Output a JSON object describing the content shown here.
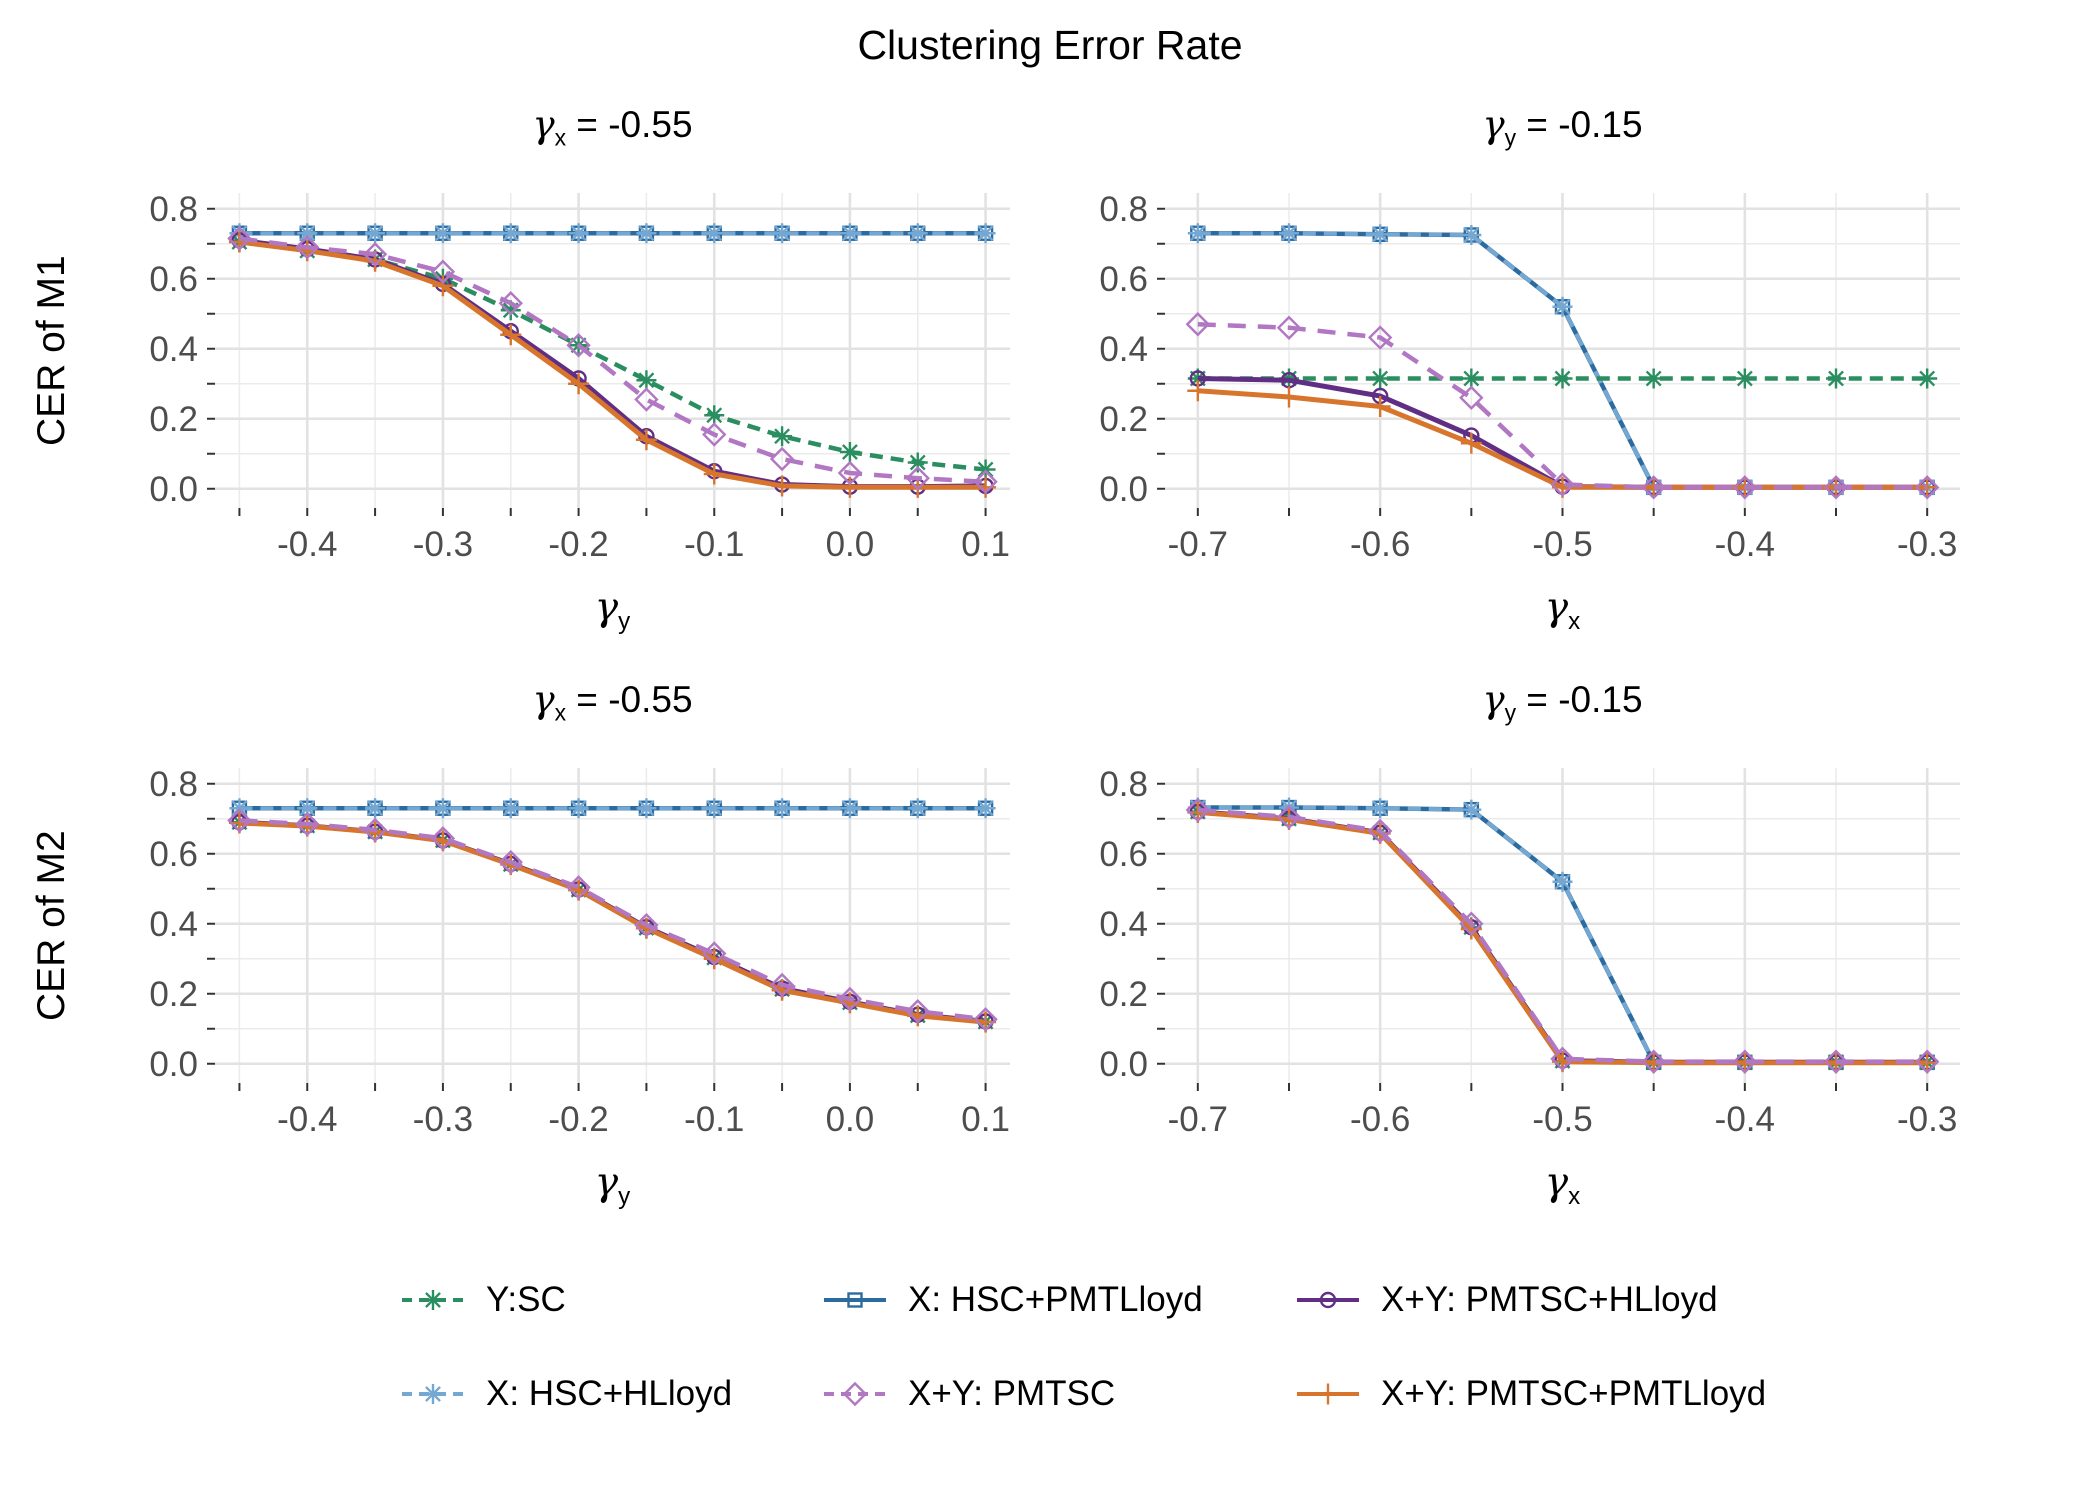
{
  "title": "Clustering Error Rate",
  "colors": {
    "green": "#2b8e60",
    "light_blue": "#74a8d3",
    "dark_blue": "#2c6ba0",
    "orchid": "#b277c3",
    "dark_purple": "#602e84",
    "orange": "#d7752d",
    "grid_major": "#e2e2e2",
    "grid_minor": "#ebebeb",
    "tick": "#333333",
    "tick_label": "#4d4d4d"
  },
  "series_styles": {
    "Y:SC": {
      "color": "#2b8e60",
      "dash": "13 8",
      "marker": "asterisk",
      "width": 4.5
    },
    "X: HSC+HLloyd": {
      "color": "#74a8d3",
      "dash": "13 8",
      "marker": "asterisk",
      "width": 4
    },
    "X: HSC+PMTLloyd": {
      "color": "#2c6ba0",
      "dash": "",
      "marker": "square",
      "width": 4.5
    },
    "X+Y: PMTSC": {
      "color": "#b277c3",
      "dash": "18 12",
      "marker": "diamond",
      "width": 4.5
    },
    "X+Y: PMTSC+HLloyd": {
      "color": "#602e84",
      "dash": "",
      "marker": "circle",
      "width": 5
    },
    "X+Y: PMTSC+PMTLloyd": {
      "color": "#d7752d",
      "dash": "",
      "marker": "plus",
      "width": 5
    }
  },
  "draw_order": [
    "X: HSC+PMTLloyd",
    "X: HSC+HLloyd",
    "Y:SC",
    "X+Y: PMTSC+HLloyd",
    "X+Y: PMTSC+PMTLloyd",
    "X+Y: PMTSC"
  ],
  "legend": {
    "rows": [
      [
        "Y:SC",
        "X: HSC+PMTLloyd",
        "X+Y: PMTSC+HLloyd"
      ],
      [
        "X: HSC+HLloyd",
        "X+Y: PMTSC",
        "X+Y: PMTSC+PMTLloyd"
      ]
    ]
  },
  "chart_data": [
    {
      "id": "m1-left",
      "type": "line",
      "facet": {
        "pre": "γ",
        "sub": "x",
        "post": " = -0.55"
      },
      "ylab": "CER of M1",
      "xlab": {
        "pre": "γ",
        "sub": "y"
      },
      "xlim": [
        -0.468,
        0.118
      ],
      "ylim": [
        -0.055,
        0.845
      ],
      "x": [
        -0.45,
        -0.4,
        -0.35,
        -0.3,
        -0.25,
        -0.2,
        -0.15,
        -0.1,
        -0.05,
        0.0,
        0.05,
        0.1
      ],
      "x_ticks": {
        "values": [
          -0.4,
          -0.3,
          -0.2,
          -0.1,
          0.0,
          0.1
        ],
        "labels": [
          "-0.4",
          "-0.3",
          "-0.2",
          "-0.1",
          "0.0",
          "0.1"
        ]
      },
      "x_minor": [
        -0.45,
        -0.35,
        -0.25,
        -0.15,
        -0.05,
        0.05
      ],
      "y_ticks": {
        "values": [
          0.0,
          0.2,
          0.4,
          0.6,
          0.8
        ],
        "labels": [
          "0.0",
          "0.2",
          "0.4",
          "0.6",
          "0.8"
        ]
      },
      "y_minor": [
        0.1,
        0.3,
        0.5,
        0.7
      ],
      "series": [
        {
          "name": "Y:SC",
          "values": [
            0.705,
            0.68,
            0.655,
            0.6,
            0.51,
            0.41,
            0.31,
            0.21,
            0.15,
            0.105,
            0.075,
            0.055
          ]
        },
        {
          "name": "X: HSC+HLloyd",
          "values": [
            0.73,
            0.73,
            0.73,
            0.73,
            0.73,
            0.73,
            0.73,
            0.73,
            0.73,
            0.73,
            0.73,
            0.73
          ]
        },
        {
          "name": "X: HSC+PMTLloyd",
          "values": [
            0.73,
            0.73,
            0.73,
            0.73,
            0.73,
            0.73,
            0.73,
            0.73,
            0.73,
            0.73,
            0.73,
            0.73
          ]
        },
        {
          "name": "X+Y: PMTSC",
          "values": [
            0.715,
            0.69,
            0.67,
            0.62,
            0.53,
            0.41,
            0.255,
            0.155,
            0.085,
            0.045,
            0.03,
            0.02
          ]
        },
        {
          "name": "X+Y: PMTSC+HLloyd",
          "values": [
            0.71,
            0.685,
            0.655,
            0.585,
            0.45,
            0.315,
            0.15,
            0.05,
            0.012,
            0.006,
            0.006,
            0.008
          ]
        },
        {
          "name": "X+Y: PMTSC+PMTLloyd",
          "values": [
            0.705,
            0.68,
            0.65,
            0.58,
            0.44,
            0.3,
            0.14,
            0.042,
            0.008,
            0.004,
            0.004,
            0.004
          ]
        }
      ]
    },
    {
      "id": "m1-right",
      "type": "line",
      "facet": {
        "pre": "γ",
        "sub": "y",
        "post": " = -0.15"
      },
      "ylab": "CER of M1",
      "xlab": {
        "pre": "γ",
        "sub": "x"
      },
      "xlim": [
        -0.718,
        -0.282
      ],
      "ylim": [
        -0.055,
        0.845
      ],
      "x": [
        -0.7,
        -0.65,
        -0.6,
        -0.55,
        -0.5,
        -0.45,
        -0.4,
        -0.35,
        -0.3
      ],
      "x_ticks": {
        "values": [
          -0.7,
          -0.6,
          -0.5,
          -0.4,
          -0.3
        ],
        "labels": [
          "-0.7",
          "-0.6",
          "-0.5",
          "-0.4",
          "-0.3"
        ]
      },
      "x_minor": [
        -0.65,
        -0.55,
        -0.45,
        -0.35
      ],
      "y_ticks": {
        "values": [
          0.0,
          0.2,
          0.4,
          0.6,
          0.8
        ],
        "labels": [
          "0.0",
          "0.2",
          "0.4",
          "0.6",
          "0.8"
        ]
      },
      "y_minor": [
        0.1,
        0.3,
        0.5,
        0.7
      ],
      "series": [
        {
          "name": "Y:SC",
          "values": [
            0.315,
            0.315,
            0.315,
            0.315,
            0.315,
            0.315,
            0.315,
            0.315,
            0.315
          ]
        },
        {
          "name": "X: HSC+HLloyd",
          "values": [
            0.73,
            0.73,
            0.727,
            0.725,
            0.52,
            0.004,
            0.004,
            0.004,
            0.004
          ]
        },
        {
          "name": "X: HSC+PMTLloyd",
          "values": [
            0.73,
            0.73,
            0.727,
            0.725,
            0.52,
            0.004,
            0.004,
            0.004,
            0.004
          ]
        },
        {
          "name": "X+Y: PMTSC",
          "values": [
            0.47,
            0.46,
            0.432,
            0.26,
            0.012,
            0.004,
            0.004,
            0.004,
            0.004
          ]
        },
        {
          "name": "X+Y: PMTSC+HLloyd",
          "values": [
            0.315,
            0.31,
            0.265,
            0.152,
            0.006,
            0.004,
            0.004,
            0.004,
            0.004
          ]
        },
        {
          "name": "X+Y: PMTSC+PMTLloyd",
          "values": [
            0.28,
            0.262,
            0.235,
            0.13,
            0.004,
            0.004,
            0.004,
            0.004,
            0.004
          ]
        }
      ]
    },
    {
      "id": "m2-left",
      "type": "line",
      "facet": {
        "pre": "γ",
        "sub": "x",
        "post": " = -0.55"
      },
      "ylab": "CER of M2",
      "xlab": {
        "pre": "γ",
        "sub": "y"
      },
      "xlim": [
        -0.468,
        0.118
      ],
      "ylim": [
        -0.055,
        0.845
      ],
      "x": [
        -0.45,
        -0.4,
        -0.35,
        -0.3,
        -0.25,
        -0.2,
        -0.15,
        -0.1,
        -0.05,
        0.0,
        0.05,
        0.1
      ],
      "x_ticks": {
        "values": [
          -0.4,
          -0.3,
          -0.2,
          -0.1,
          0.0,
          0.1
        ],
        "labels": [
          "-0.4",
          "-0.3",
          "-0.2",
          "-0.1",
          "0.0",
          "0.1"
        ]
      },
      "x_minor": [
        -0.45,
        -0.35,
        -0.25,
        -0.15,
        -0.05,
        0.05
      ],
      "y_ticks": {
        "values": [
          0.0,
          0.2,
          0.4,
          0.6,
          0.8
        ],
        "labels": [
          "0.0",
          "0.2",
          "0.4",
          "0.6",
          "0.8"
        ]
      },
      "y_minor": [
        0.1,
        0.3,
        0.5,
        0.7
      ],
      "series": [
        {
          "name": "Y:SC",
          "values": [
            0.69,
            0.68,
            0.663,
            0.638,
            0.57,
            0.497,
            0.388,
            0.303,
            0.213,
            0.175,
            0.138,
            0.12
          ]
        },
        {
          "name": "X: HSC+HLloyd",
          "values": [
            0.73,
            0.73,
            0.73,
            0.73,
            0.73,
            0.73,
            0.73,
            0.73,
            0.73,
            0.73,
            0.73,
            0.73
          ]
        },
        {
          "name": "X: HSC+PMTLloyd",
          "values": [
            0.73,
            0.73,
            0.73,
            0.73,
            0.73,
            0.73,
            0.73,
            0.73,
            0.73,
            0.73,
            0.73,
            0.73
          ]
        },
        {
          "name": "X+Y: PMTSC",
          "values": [
            0.695,
            0.685,
            0.668,
            0.644,
            0.576,
            0.504,
            0.396,
            0.315,
            0.225,
            0.185,
            0.15,
            0.127
          ]
        },
        {
          "name": "X+Y: PMTSC+HLloyd",
          "values": [
            0.69,
            0.68,
            0.663,
            0.638,
            0.571,
            0.498,
            0.39,
            0.305,
            0.215,
            0.177,
            0.14,
            0.121
          ]
        },
        {
          "name": "X+Y: PMTSC+PMTLloyd",
          "values": [
            0.688,
            0.679,
            0.662,
            0.637,
            0.569,
            0.496,
            0.387,
            0.3,
            0.21,
            0.174,
            0.137,
            0.119
          ]
        }
      ]
    },
    {
      "id": "m2-right",
      "type": "line",
      "facet": {
        "pre": "γ",
        "sub": "y",
        "post": " = -0.15"
      },
      "ylab": "CER of M2",
      "xlab": {
        "pre": "γ",
        "sub": "x"
      },
      "xlim": [
        -0.718,
        -0.282
      ],
      "ylim": [
        -0.055,
        0.845
      ],
      "x": [
        -0.7,
        -0.65,
        -0.6,
        -0.55,
        -0.5,
        -0.45,
        -0.4,
        -0.35,
        -0.3
      ],
      "x_ticks": {
        "values": [
          -0.7,
          -0.6,
          -0.5,
          -0.4,
          -0.3
        ],
        "labels": [
          "-0.7",
          "-0.6",
          "-0.5",
          "-0.4",
          "-0.3"
        ]
      },
      "x_minor": [
        -0.65,
        -0.55,
        -0.45,
        -0.35
      ],
      "y_ticks": {
        "values": [
          0.0,
          0.2,
          0.4,
          0.6,
          0.8
        ],
        "labels": [
          "0.0",
          "0.2",
          "0.4",
          "0.6",
          "0.8"
        ]
      },
      "y_minor": [
        0.1,
        0.3,
        0.5,
        0.7
      ],
      "series": [
        {
          "name": "Y:SC",
          "values": [
            0.72,
            0.7,
            0.66,
            0.39,
            0.008,
            0.004,
            0.004,
            0.004,
            0.004
          ]
        },
        {
          "name": "X: HSC+HLloyd",
          "values": [
            0.732,
            0.732,
            0.73,
            0.726,
            0.52,
            0.004,
            0.004,
            0.004,
            0.004
          ]
        },
        {
          "name": "X: HSC+PMTLloyd",
          "values": [
            0.732,
            0.732,
            0.73,
            0.726,
            0.52,
            0.004,
            0.004,
            0.004,
            0.004
          ]
        },
        {
          "name": "X+Y: PMTSC",
          "values": [
            0.725,
            0.705,
            0.665,
            0.4,
            0.014,
            0.006,
            0.006,
            0.006,
            0.006
          ]
        },
        {
          "name": "X+Y: PMTSC+HLloyd",
          "values": [
            0.72,
            0.7,
            0.66,
            0.39,
            0.009,
            0.004,
            0.004,
            0.004,
            0.004
          ]
        },
        {
          "name": "X+Y: PMTSC+PMTLloyd",
          "values": [
            0.718,
            0.698,
            0.658,
            0.385,
            0.006,
            0.003,
            0.003,
            0.003,
            0.003
          ]
        }
      ]
    }
  ]
}
